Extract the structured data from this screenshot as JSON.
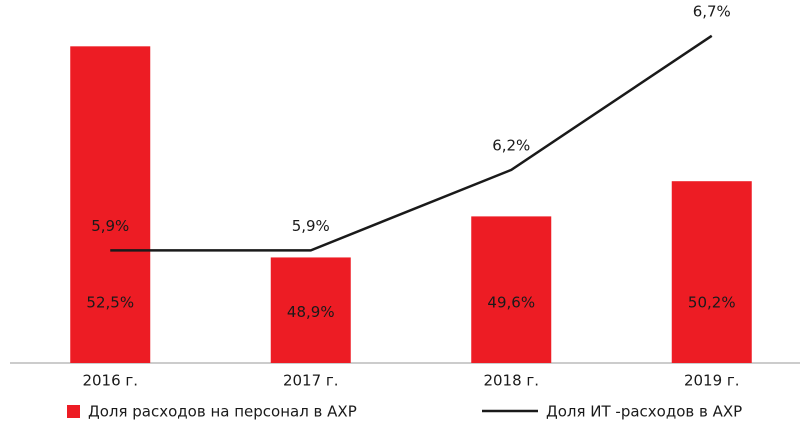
{
  "chart_data": {
    "type": "bar",
    "categories": [
      "2016 г.",
      "2017 г.",
      "2018 г.",
      "2019 г."
    ],
    "series": [
      {
        "name": "Доля расходов на персонал в АХР",
        "type": "bar",
        "color": "#ed1c24",
        "values": [
          52.5,
          48.9,
          49.6,
          50.2
        ],
        "value_labels": [
          "52,5%",
          "48,9%",
          "49,6%",
          "50,2%"
        ]
      },
      {
        "name": "Доля ИТ -расходов в АХР",
        "type": "line",
        "axis": "y2",
        "color": "#1a1a1a",
        "values": [
          5.9,
          5.9,
          6.2,
          6.7
        ],
        "value_labels": [
          "5,9%",
          "5,9%",
          "6,2%",
          "6,7%"
        ]
      }
    ],
    "ylim": [
      47.1,
      53
    ],
    "y2lim": [
      5.48,
      6.77
    ],
    "legend": "bottom"
  }
}
